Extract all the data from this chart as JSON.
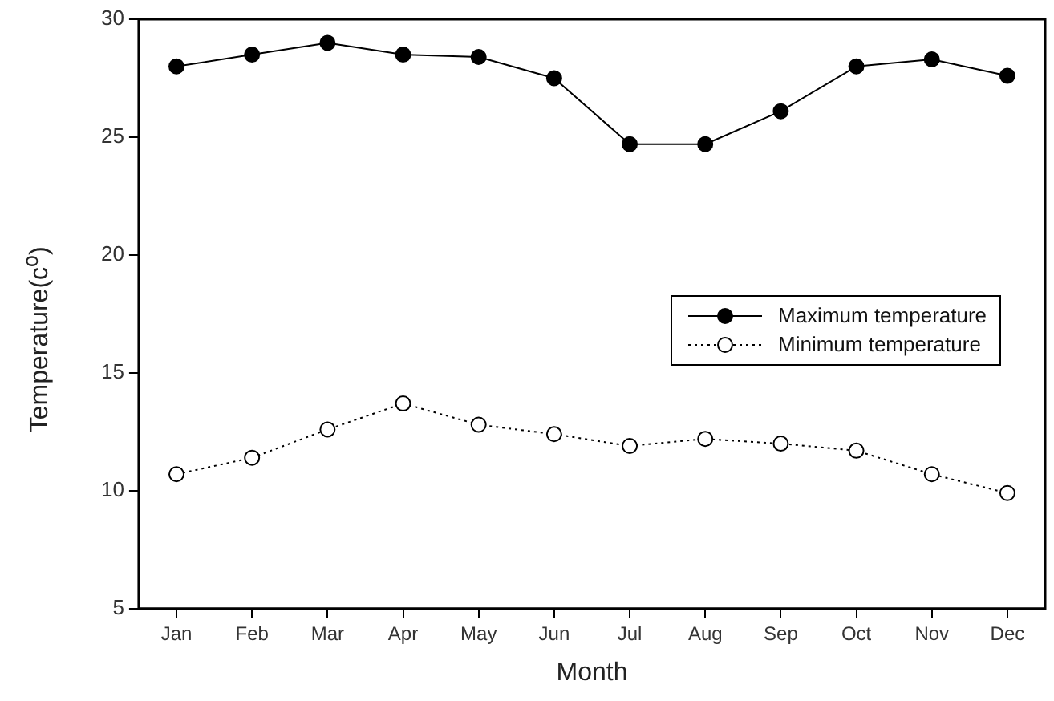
{
  "chart_data": {
    "type": "line",
    "xlabel": "Month",
    "ylabel": "Temperature(c$^{o}$)",
    "categories": [
      "Jan",
      "Feb",
      "Mar",
      "Apr",
      "May",
      "Jun",
      "Jul",
      "Aug",
      "Sep",
      "Oct",
      "Nov",
      "Dec"
    ],
    "series": [
      {
        "name": "Maximum temperature",
        "color": "#000000",
        "line_style": "solid",
        "values": [
          28.0,
          28.5,
          29.0,
          28.5,
          28.4,
          27.5,
          24.7,
          24.7,
          26.1,
          28.0,
          28.3,
          27.6
        ]
      },
      {
        "name": "Minimum temperature",
        "color": "#000000",
        "line_style": "dotted",
        "values": [
          10.7,
          11.4,
          12.6,
          13.7,
          12.8,
          12.4,
          11.9,
          12.2,
          12.0,
          11.7,
          10.7,
          9.9
        ]
      }
    ],
    "ylim": [
      5,
      30
    ],
    "yticks": [
      5,
      10,
      15,
      20,
      25,
      30
    ],
    "grid": false,
    "legend": "right",
    "marker": "circle"
  }
}
